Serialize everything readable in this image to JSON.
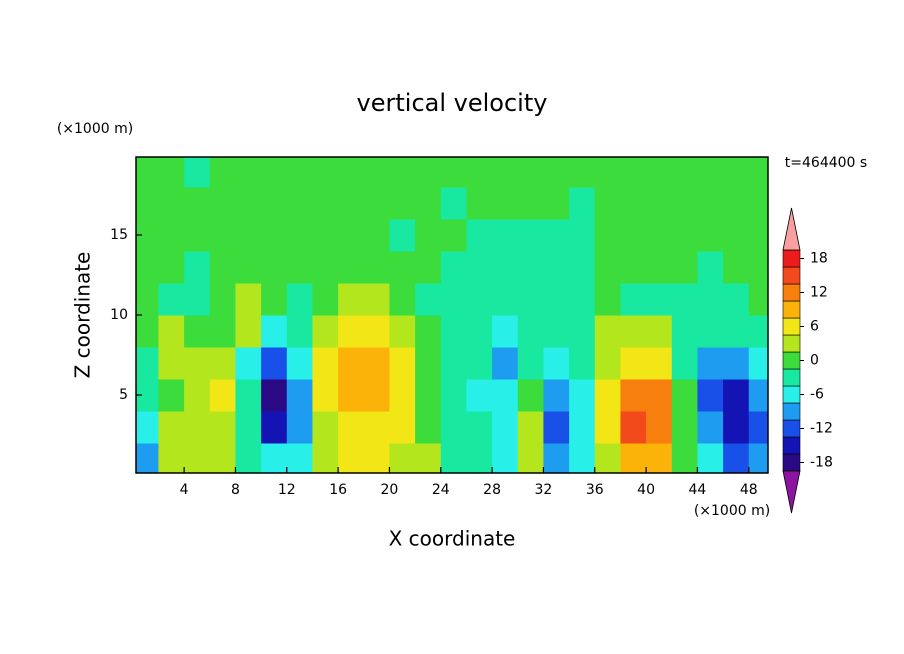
{
  "chart_data": {
    "type": "contour",
    "title": "vertical velocity",
    "x_label": "X coordinate",
    "y_label": "Z coordinate",
    "x_unit": "(×1000 m)",
    "y_unit": "(×1000 m)",
    "time_label": "t=464400 s",
    "xlim": [
      0.25,
      49.5
    ],
    "ylim": [
      0.125,
      19.875
    ],
    "xticks": [
      4,
      8,
      12,
      16,
      20,
      24,
      28,
      32,
      36,
      40,
      44,
      48
    ],
    "yticks": [
      5,
      10,
      15
    ],
    "x": [
      1,
      3,
      5,
      7,
      9,
      11,
      13,
      15,
      17,
      19,
      21,
      23,
      25,
      27,
      29,
      31,
      33,
      35,
      37,
      39,
      41,
      43,
      45,
      47,
      49
    ],
    "y": [
      1,
      3,
      5,
      7,
      9,
      11,
      13,
      15,
      17,
      19
    ],
    "z": [
      [
        -9,
        3,
        3,
        3,
        -3,
        -6,
        -6,
        3,
        6,
        6,
        3,
        3,
        -3,
        -3,
        -6,
        3,
        -9,
        -6,
        3,
        9,
        9,
        0,
        -6,
        -12,
        -9
      ],
      [
        -6,
        3,
        3,
        3,
        -3,
        -15,
        -9,
        3,
        6,
        6,
        6,
        0,
        -3,
        -3,
        -6,
        3,
        -12,
        -6,
        6,
        15,
        12,
        0,
        -9,
        -15,
        -12
      ],
      [
        -3,
        0,
        3,
        6,
        -3,
        -18,
        -9,
        6,
        9,
        9,
        6,
        0,
        -3,
        -6,
        -6,
        0,
        -9,
        -6,
        6,
        12,
        12,
        0,
        -12,
        -15,
        -9
      ],
      [
        -3,
        3,
        3,
        3,
        -6,
        -12,
        -6,
        6,
        9,
        9,
        6,
        0,
        -3,
        -3,
        -9,
        -3,
        -6,
        -3,
        3,
        6,
        6,
        -3,
        -9,
        -9,
        -6
      ],
      [
        0,
        3,
        0,
        0,
        3,
        -6,
        -3,
        3,
        6,
        6,
        3,
        0,
        -3,
        -3,
        -6,
        -3,
        -3,
        -3,
        3,
        3,
        3,
        -3,
        -3,
        -3,
        -3
      ],
      [
        0,
        -3,
        -3,
        0,
        3,
        0,
        -3,
        0,
        3,
        3,
        0,
        -3,
        -3,
        -3,
        -3,
        -3,
        -3,
        -3,
        0,
        -3,
        -3,
        -3,
        -3,
        -3,
        0
      ],
      [
        0,
        0,
        -3,
        0,
        0,
        0,
        0,
        0,
        0,
        0,
        0,
        0,
        -3,
        -3,
        -3,
        -3,
        -3,
        -3,
        0,
        0,
        0,
        0,
        -3,
        0,
        0
      ],
      [
        0,
        0,
        0,
        0,
        0,
        0,
        0,
        0,
        0,
        0,
        -3,
        0,
        0,
        -3,
        -3,
        -3,
        -3,
        -3,
        0,
        0,
        0,
        0,
        0,
        0,
        0
      ],
      [
        0,
        0,
        0,
        0,
        0,
        0,
        0,
        0,
        0,
        0,
        0,
        0,
        -3,
        0,
        0,
        0,
        0,
        -3,
        0,
        0,
        0,
        0,
        0,
        0,
        0
      ],
      [
        0,
        0,
        -3,
        0,
        0,
        0,
        0,
        0,
        0,
        0,
        0,
        0,
        0,
        0,
        0,
        0,
        0,
        0,
        0,
        0,
        0,
        0,
        0,
        0,
        0
      ]
    ],
    "colorbar": {
      "levels": [
        -19.5,
        -16.5,
        -13.5,
        -10.5,
        -7.5,
        -4.5,
        -1.5,
        1.5,
        4.5,
        7.5,
        10.5,
        13.5,
        16.5,
        19.5
      ],
      "colors": [
        "#8c14a0",
        "#2a0a84",
        "#1414b4",
        "#1850e8",
        "#1e9cf0",
        "#28f0e8",
        "#18e8a0",
        "#3cdc3c",
        "#b4e61e",
        "#f2e616",
        "#fbb30a",
        "#f77f0e",
        "#f24a1a",
        "#ec1c1c",
        "#f8a0a0"
      ],
      "ticks": [
        -18,
        -12,
        -6,
        0,
        6,
        12,
        18
      ]
    }
  }
}
